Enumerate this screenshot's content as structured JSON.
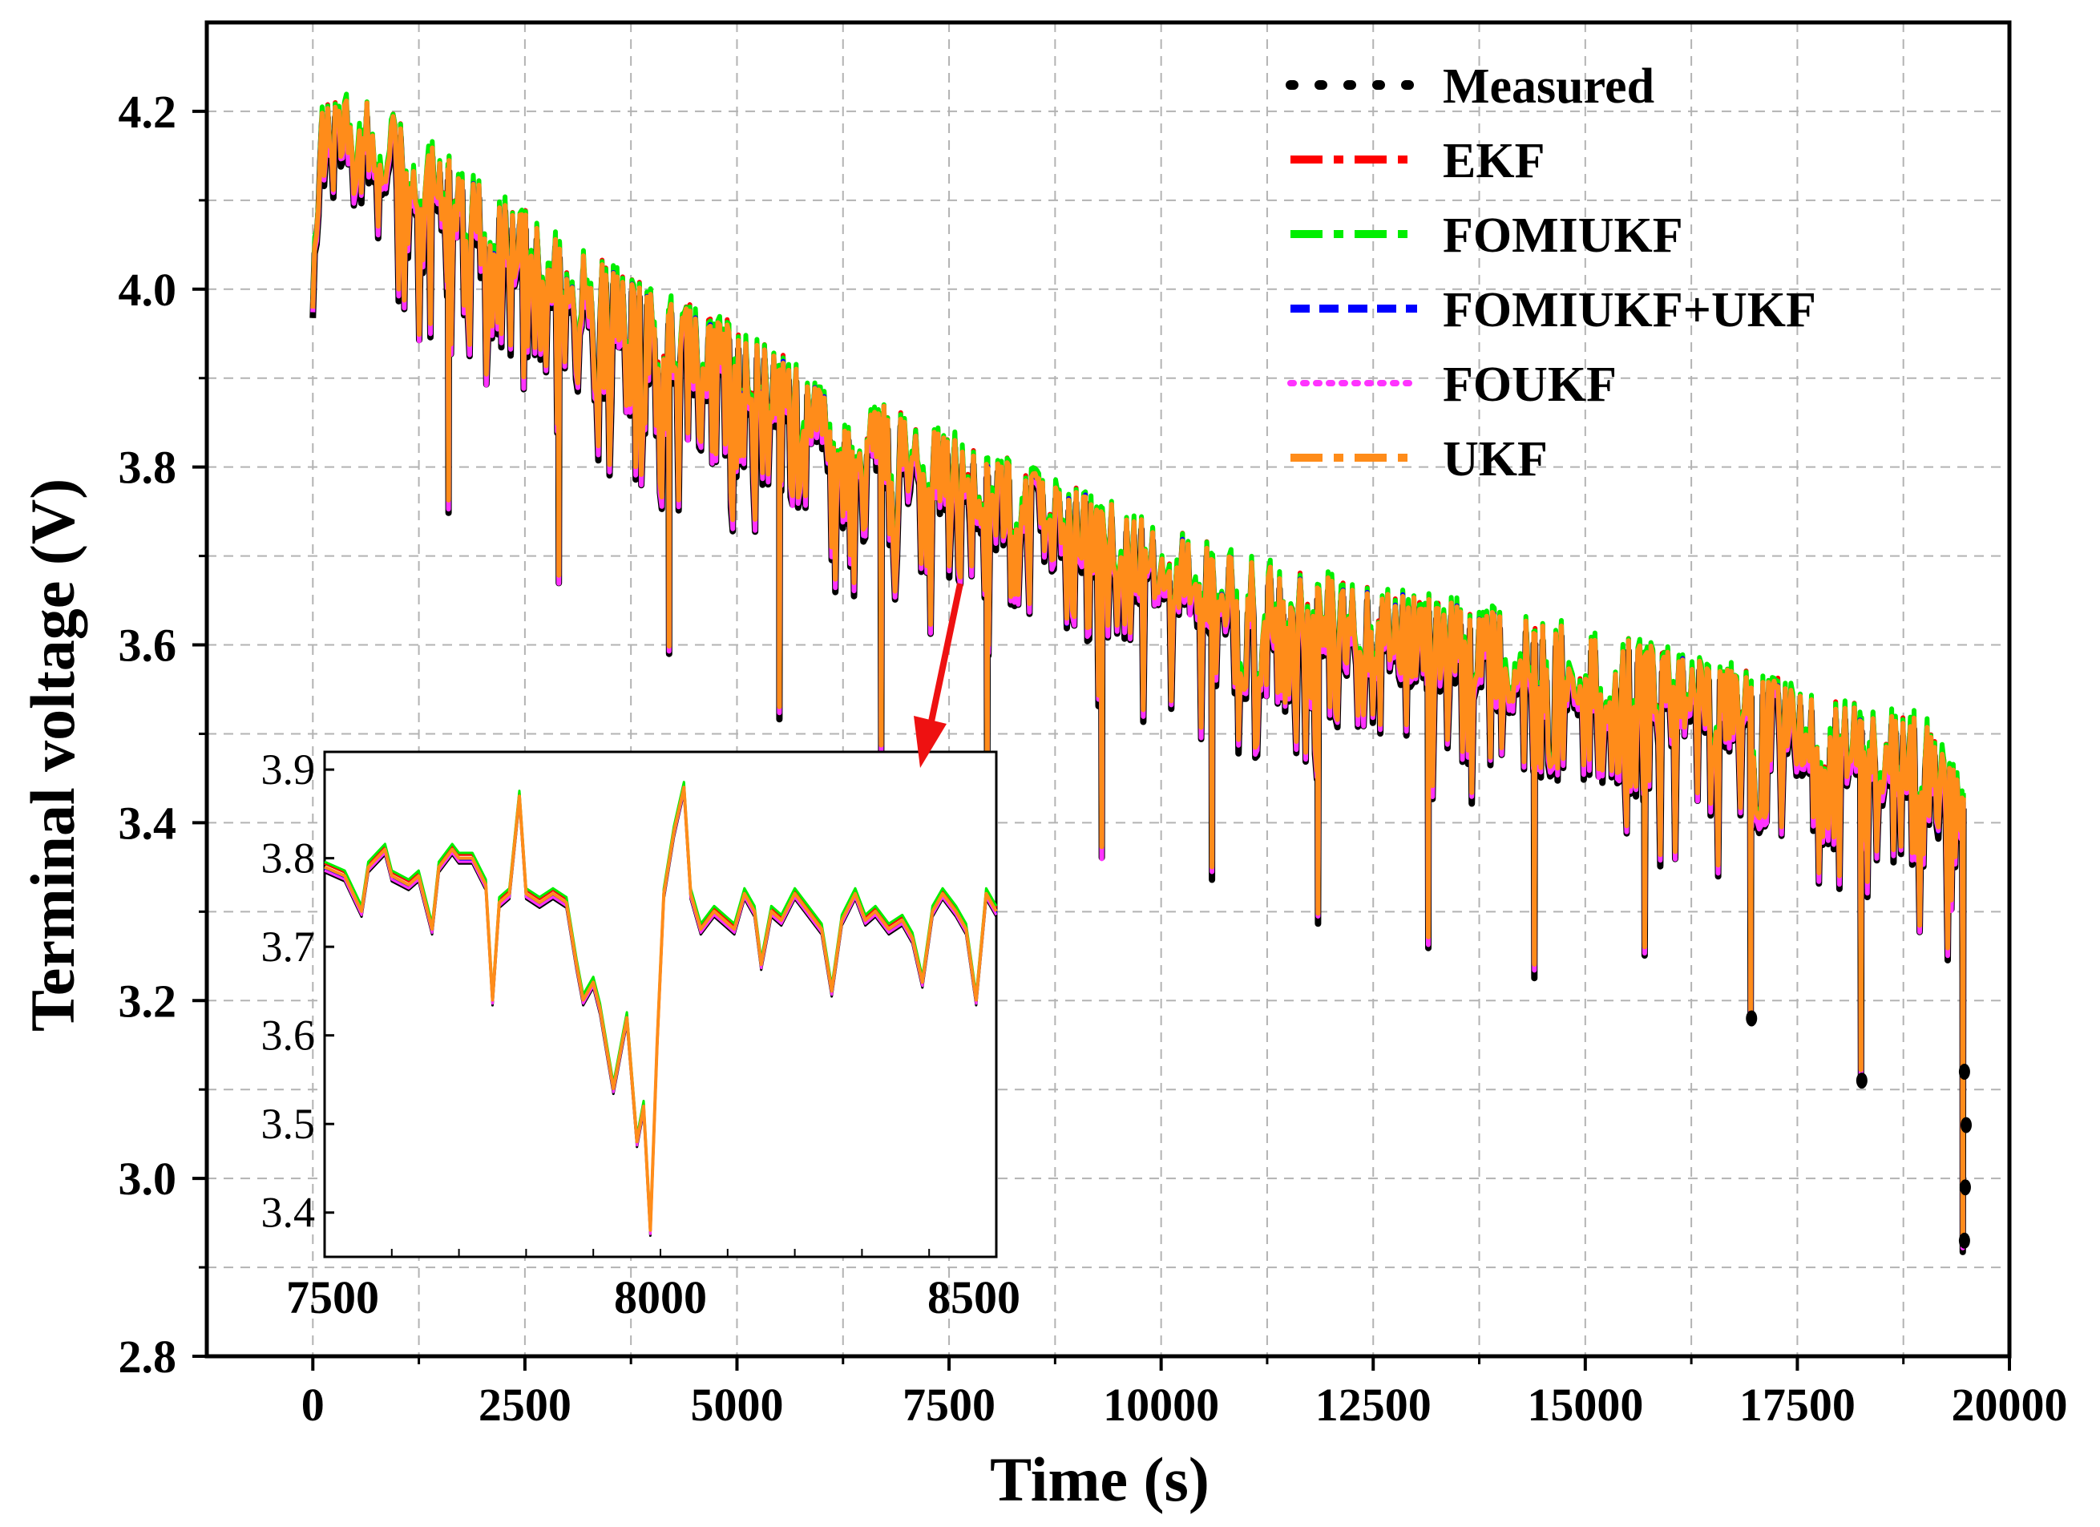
{
  "chart_data": {
    "type": "line",
    "title": "",
    "xlabel": "Time (s)",
    "ylabel": "Terminal voltage (V)",
    "xlim": [
      -1250,
      20000
    ],
    "ylim": [
      2.8,
      4.3
    ],
    "x_ticks": [
      0,
      2500,
      5000,
      7500,
      10000,
      12500,
      15000,
      17500,
      20000
    ],
    "x_tick_labels": [
      "0",
      "2500",
      "5000",
      "7500",
      "10000",
      "12500",
      "15000",
      "17500",
      "20000"
    ],
    "y_ticks": [
      2.8,
      3.0,
      3.2,
      3.4,
      3.6,
      3.8,
      4.0,
      4.2
    ],
    "y_tick_labels": [
      "2.8",
      "3.0",
      "3.2",
      "3.4",
      "3.6",
      "3.8",
      "4.0",
      "4.2"
    ],
    "grid": true,
    "legend_position": "top-right",
    "series": [
      {
        "name": "Measured",
        "color": "#000000",
        "style": "dotted-heavy"
      },
      {
        "name": "EKF",
        "color": "#ff0000",
        "style": "dash-dot"
      },
      {
        "name": "FOMIUKF",
        "color": "#00ee00",
        "style": "dash-dot"
      },
      {
        "name": "FOMIUKF+UKF",
        "color": "#0000ff",
        "style": "dashed"
      },
      {
        "name": "FOUKF",
        "color": "#ff33ff",
        "style": "dotted"
      },
      {
        "name": "UKF",
        "color": "#ff8c1a",
        "style": "dash-dot"
      }
    ],
    "profile": {
      "x": [
        0,
        100,
        500,
        1000,
        2000,
        3000,
        4000,
        5000,
        6000,
        7000,
        8000,
        9000,
        10000,
        11000,
        12000,
        13000,
        14000,
        15000,
        16000,
        17000,
        18000,
        19000,
        19500
      ],
      "upper": [
        4.0,
        4.19,
        4.2,
        4.18,
        4.1,
        4.04,
        3.98,
        3.94,
        3.88,
        3.84,
        3.8,
        3.76,
        3.72,
        3.68,
        3.66,
        3.64,
        3.62,
        3.6,
        3.58,
        3.55,
        3.52,
        3.5,
        3.42
      ],
      "lower": [
        3.94,
        4.14,
        4.12,
        4.06,
        3.98,
        3.92,
        3.86,
        3.82,
        3.77,
        3.72,
        3.68,
        3.64,
        3.61,
        3.57,
        3.54,
        3.51,
        3.49,
        3.47,
        3.45,
        3.42,
        3.4,
        3.37,
        3.3
      ],
      "dip_x": [
        1600,
        2900,
        4200,
        5500,
        6700,
        7950,
        9300,
        10600,
        11850,
        13150,
        14400,
        15700,
        16950,
        18250,
        19450
      ],
      "dip_y": [
        3.76,
        3.68,
        3.6,
        3.53,
        3.49,
        3.42,
        3.37,
        3.35,
        3.3,
        3.27,
        3.24,
        3.26,
        3.19,
        3.12,
        2.93
      ]
    },
    "inset": {
      "x_range": [
        7500,
        8500
      ],
      "ylim": [
        3.35,
        3.92
      ],
      "x_ticks": [
        7500,
        8000,
        8500
      ],
      "x_tick_labels": [
        "7500",
        "8000",
        "8500"
      ],
      "y_ticks": [
        3.4,
        3.5,
        3.6,
        3.7,
        3.8,
        3.9
      ],
      "y_tick_labels": [
        "3.4",
        "3.5",
        "3.6",
        "3.7",
        "3.8",
        "3.9"
      ],
      "points": [
        [
          7500,
          3.79
        ],
        [
          7530,
          3.78
        ],
        [
          7555,
          3.74
        ],
        [
          7565,
          3.79
        ],
        [
          7590,
          3.81
        ],
        [
          7600,
          3.78
        ],
        [
          7625,
          3.77
        ],
        [
          7640,
          3.78
        ],
        [
          7660,
          3.72
        ],
        [
          7670,
          3.79
        ],
        [
          7690,
          3.81
        ],
        [
          7700,
          3.8
        ],
        [
          7720,
          3.8
        ],
        [
          7740,
          3.77
        ],
        [
          7750,
          3.64
        ],
        [
          7760,
          3.75
        ],
        [
          7775,
          3.76
        ],
        [
          7790,
          3.87
        ],
        [
          7800,
          3.76
        ],
        [
          7820,
          3.75
        ],
        [
          7840,
          3.76
        ],
        [
          7860,
          3.75
        ],
        [
          7875,
          3.68
        ],
        [
          7885,
          3.64
        ],
        [
          7900,
          3.66
        ],
        [
          7910,
          3.63
        ],
        [
          7930,
          3.54
        ],
        [
          7950,
          3.62
        ],
        [
          7965,
          3.48
        ],
        [
          7975,
          3.52
        ],
        [
          7985,
          3.38
        ],
        [
          7995,
          3.59
        ],
        [
          8005,
          3.76
        ],
        [
          8020,
          3.83
        ],
        [
          8035,
          3.88
        ],
        [
          8045,
          3.76
        ],
        [
          8060,
          3.72
        ],
        [
          8080,
          3.74
        ],
        [
          8095,
          3.73
        ],
        [
          8110,
          3.72
        ],
        [
          8125,
          3.76
        ],
        [
          8140,
          3.74
        ],
        [
          8150,
          3.68
        ],
        [
          8165,
          3.74
        ],
        [
          8180,
          3.73
        ],
        [
          8200,
          3.76
        ],
        [
          8220,
          3.74
        ],
        [
          8240,
          3.72
        ],
        [
          8255,
          3.65
        ],
        [
          8270,
          3.73
        ],
        [
          8290,
          3.76
        ],
        [
          8305,
          3.73
        ],
        [
          8320,
          3.74
        ],
        [
          8340,
          3.72
        ],
        [
          8360,
          3.73
        ],
        [
          8375,
          3.71
        ],
        [
          8390,
          3.66
        ],
        [
          8405,
          3.74
        ],
        [
          8420,
          3.76
        ],
        [
          8440,
          3.74
        ],
        [
          8455,
          3.72
        ],
        [
          8470,
          3.64
        ],
        [
          8485,
          3.76
        ],
        [
          8500,
          3.74
        ]
      ]
    }
  }
}
